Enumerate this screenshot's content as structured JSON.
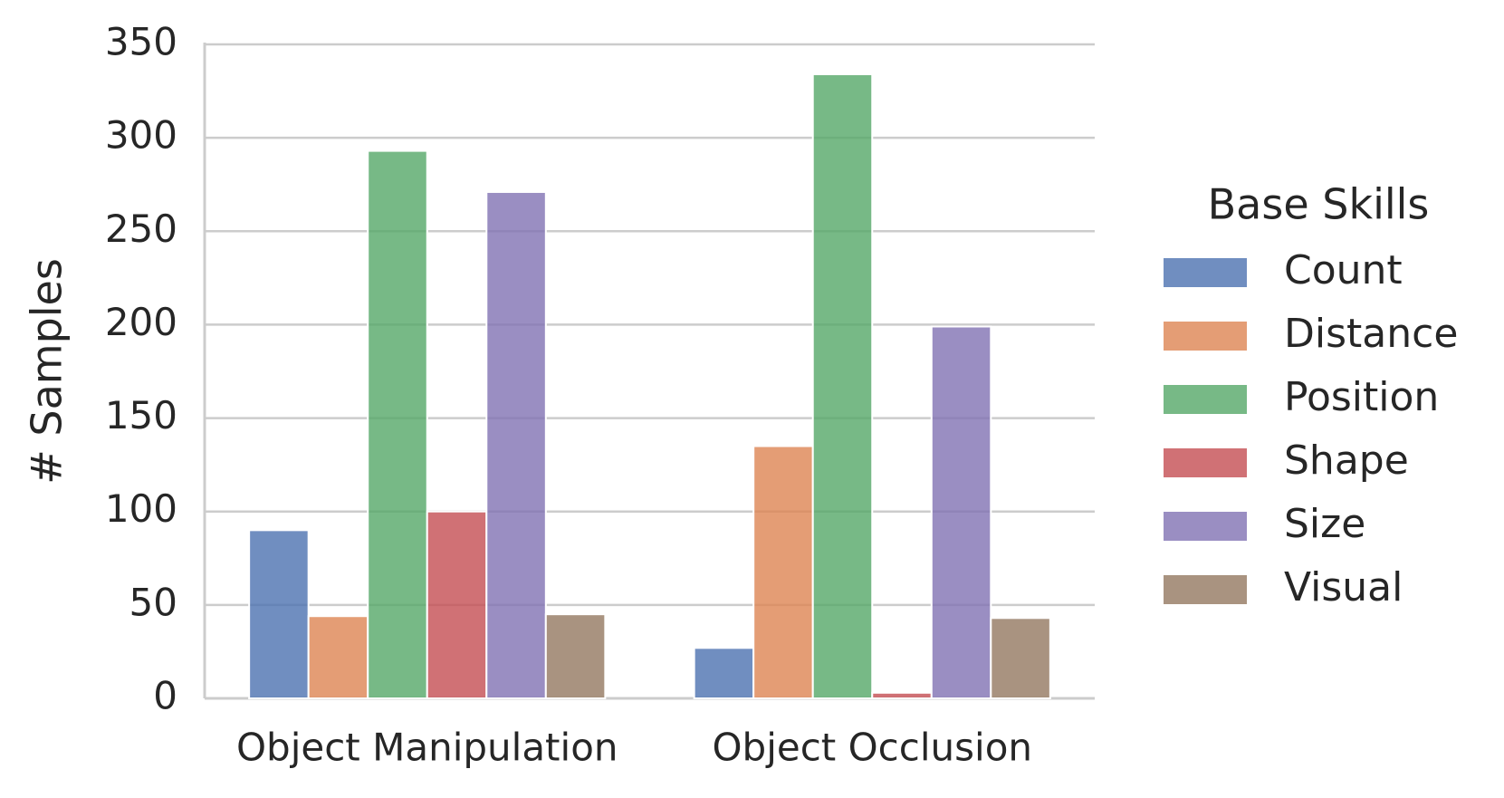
{
  "chart_data": {
    "type": "bar",
    "ylabel": "# Samples",
    "categories": [
      "Object Manipulation",
      "Object Occlusion"
    ],
    "series": [
      {
        "name": "Count",
        "color": "#4c72b0",
        "values": [
          90,
          27
        ]
      },
      {
        "name": "Distance",
        "color": "#dd8452",
        "values": [
          44,
          135
        ]
      },
      {
        "name": "Position",
        "color": "#55a868",
        "values": [
          293,
          334
        ]
      },
      {
        "name": "Shape",
        "color": "#c44e52",
        "values": [
          100,
          3
        ]
      },
      {
        "name": "Size",
        "color": "#8172b3",
        "values": [
          271,
          199
        ]
      },
      {
        "name": "Visual",
        "color": "#937860",
        "values": [
          45,
          43
        ]
      }
    ],
    "legend_title": "Base Skills",
    "legend_position": "right",
    "ylim": [
      0,
      350
    ],
    "yticks": [
      0,
      50,
      100,
      150,
      200,
      250,
      300,
      350
    ],
    "grid": true
  }
}
